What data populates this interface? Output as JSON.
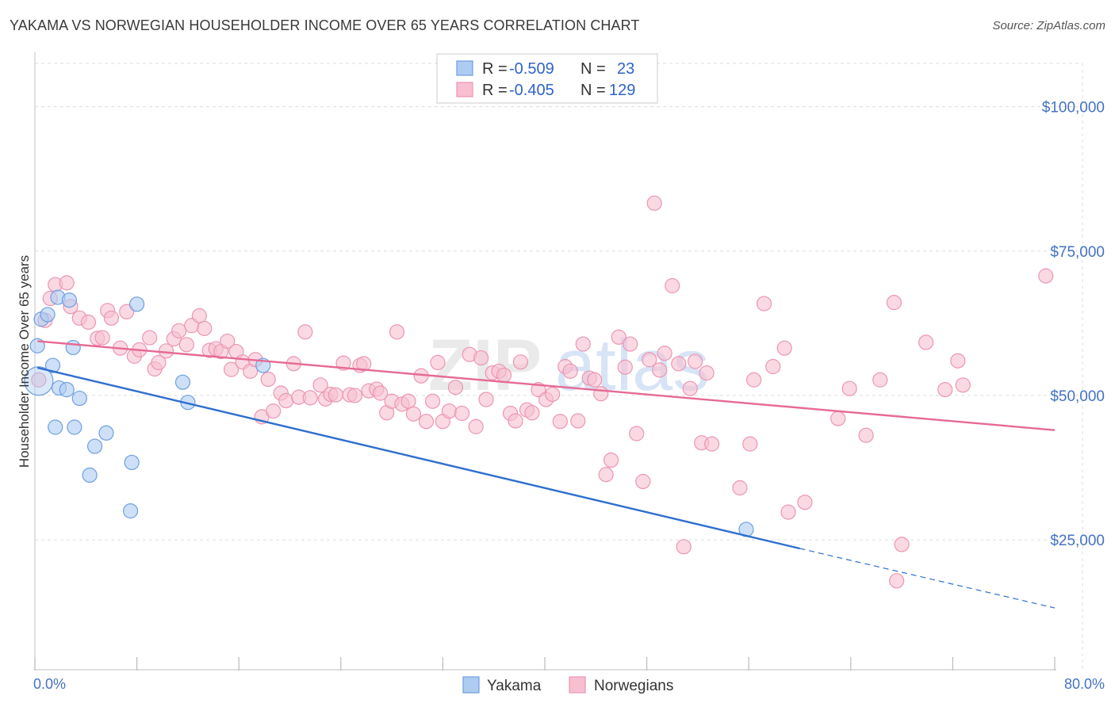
{
  "title": "YAKAMA VS NORWEGIAN HOUSEHOLDER INCOME OVER 65 YEARS CORRELATION CHART",
  "source": "Source: ZipAtlas.com",
  "watermark": {
    "part1": "ZIP",
    "part2": "atlas"
  },
  "colors": {
    "yakama_fill": "#aecbf2",
    "yakama_stroke": "#6f9fe0",
    "yakama_line": "#2f6fce",
    "norwegian_fill": "#f7bfd0",
    "norwegian_stroke": "#ec96b3",
    "norwegian_line": "#e66a94",
    "tick_text": "#4472c4",
    "grid": "#dddddd"
  },
  "legend": {
    "rows": [
      {
        "series": "yakama",
        "r_label": "R =",
        "r_value": "-0.509",
        "n_label": "N =",
        "n_value": "23"
      },
      {
        "series": "norwegians",
        "r_label": "R =",
        "r_value": "-0.405",
        "n_label": "N =",
        "n_value": "129"
      }
    ]
  },
  "chart_data": {
    "type": "scatter",
    "title": "YAKAMA VS NORWEGIAN HOUSEHOLDER INCOME OVER 65 YEARS CORRELATION CHART",
    "xlabel": "",
    "ylabel": "Householder Income Over 65 years",
    "xlim": [
      0,
      80
    ],
    "ylim": [
      2500,
      107500
    ],
    "x_tick_labels": [
      {
        "value": 0,
        "label": "0.0%"
      },
      {
        "value": 80,
        "label": "80.0%"
      }
    ],
    "y_ticks": [
      {
        "value": 25000,
        "label": "$25,000"
      },
      {
        "value": 50000,
        "label": "$50,000"
      },
      {
        "value": 75000,
        "label": "$75,000"
      },
      {
        "value": 100000,
        "label": "$100,000"
      }
    ],
    "grid": true,
    "legend_position": "top-center",
    "series": [
      {
        "name": "Yakama",
        "color": "#aecbf2",
        "r": -0.509,
        "n": 23,
        "trend": {
          "x0": 0.2,
          "y0": 54800,
          "x1": 60,
          "y1": 23500,
          "dash_to_x": 80,
          "dash_to_y": 13200
        },
        "points": [
          [
            0.2,
            58600
          ],
          [
            0.5,
            63200
          ],
          [
            1.0,
            64000
          ],
          [
            1.4,
            55200
          ],
          [
            1.6,
            44500
          ],
          [
            1.8,
            67000
          ],
          [
            1.9,
            51300
          ],
          [
            2.5,
            51000
          ],
          [
            2.7,
            66500
          ],
          [
            3.0,
            58300
          ],
          [
            3.1,
            44500
          ],
          [
            3.5,
            49500
          ],
          [
            4.3,
            36200
          ],
          [
            4.7,
            41200
          ],
          [
            5.6,
            43500
          ],
          [
            7.6,
            38400
          ],
          [
            7.5,
            30000
          ],
          [
            8.0,
            65800
          ],
          [
            11.6,
            52300
          ],
          [
            12.0,
            48800
          ],
          [
            17.9,
            55200
          ],
          [
            55.8,
            26800
          ],
          [
            0.3,
            52500
          ]
        ]
      },
      {
        "name": "Norwegians",
        "color": "#f7bfd0",
        "r": -0.405,
        "n": 129,
        "trend": {
          "x0": 0.2,
          "y0": 59400,
          "x1": 80,
          "y1": 44000
        },
        "points": [
          [
            0.3,
            52700
          ],
          [
            0.8,
            63000
          ],
          [
            1.2,
            66800
          ],
          [
            1.6,
            69200
          ],
          [
            2.5,
            69500
          ],
          [
            2.8,
            65400
          ],
          [
            3.5,
            63400
          ],
          [
            4.2,
            62700
          ],
          [
            4.9,
            59900
          ],
          [
            5.3,
            60000
          ],
          [
            5.7,
            64700
          ],
          [
            6.0,
            63400
          ],
          [
            6.7,
            58200
          ],
          [
            7.2,
            64500
          ],
          [
            7.8,
            56800
          ],
          [
            8.2,
            57900
          ],
          [
            9.0,
            60000
          ],
          [
            9.4,
            54600
          ],
          [
            9.7,
            55700
          ],
          [
            10.3,
            57700
          ],
          [
            10.9,
            59800
          ],
          [
            11.3,
            61200
          ],
          [
            11.9,
            58800
          ],
          [
            12.3,
            62100
          ],
          [
            12.9,
            63800
          ],
          [
            13.3,
            61600
          ],
          [
            13.7,
            57800
          ],
          [
            14.2,
            58100
          ],
          [
            14.6,
            57600
          ],
          [
            15.1,
            59400
          ],
          [
            15.4,
            54500
          ],
          [
            15.8,
            57600
          ],
          [
            16.3,
            55800
          ],
          [
            16.9,
            54200
          ],
          [
            17.3,
            56200
          ],
          [
            17.8,
            46300
          ],
          [
            18.3,
            52800
          ],
          [
            18.7,
            47300
          ],
          [
            19.3,
            50400
          ],
          [
            19.7,
            49100
          ],
          [
            20.3,
            55500
          ],
          [
            20.7,
            49700
          ],
          [
            21.2,
            61000
          ],
          [
            21.6,
            49600
          ],
          [
            22.4,
            51800
          ],
          [
            22.8,
            49400
          ],
          [
            23.2,
            50200
          ],
          [
            23.6,
            50100
          ],
          [
            24.2,
            55600
          ],
          [
            24.7,
            50100
          ],
          [
            25.1,
            50000
          ],
          [
            25.5,
            55200
          ],
          [
            25.8,
            55500
          ],
          [
            26.2,
            50800
          ],
          [
            26.8,
            51100
          ],
          [
            27.1,
            50400
          ],
          [
            27.6,
            47000
          ],
          [
            28.0,
            49000
          ],
          [
            28.4,
            61000
          ],
          [
            28.8,
            48500
          ],
          [
            29.3,
            49000
          ],
          [
            29.7,
            46800
          ],
          [
            30.3,
            53400
          ],
          [
            30.7,
            45500
          ],
          [
            31.2,
            49000
          ],
          [
            31.6,
            55700
          ],
          [
            32.0,
            45500
          ],
          [
            32.5,
            47300
          ],
          [
            33.0,
            51400
          ],
          [
            33.5,
            46900
          ],
          [
            34.1,
            57100
          ],
          [
            34.6,
            44600
          ],
          [
            35.0,
            56500
          ],
          [
            35.4,
            49300
          ],
          [
            35.9,
            53900
          ],
          [
            36.4,
            54200
          ],
          [
            36.8,
            53500
          ],
          [
            37.3,
            46900
          ],
          [
            37.7,
            45600
          ],
          [
            38.1,
            55800
          ],
          [
            38.6,
            47500
          ],
          [
            39.0,
            47000
          ],
          [
            39.5,
            51000
          ],
          [
            40.1,
            49300
          ],
          [
            40.6,
            50200
          ],
          [
            41.2,
            45500
          ],
          [
            41.6,
            55000
          ],
          [
            42.0,
            54200
          ],
          [
            42.6,
            45600
          ],
          [
            43.0,
            58900
          ],
          [
            43.5,
            53000
          ],
          [
            43.9,
            52700
          ],
          [
            44.4,
            50300
          ],
          [
            44.8,
            36300
          ],
          [
            45.2,
            38800
          ],
          [
            45.8,
            60100
          ],
          [
            46.3,
            54900
          ],
          [
            46.7,
            58900
          ],
          [
            47.2,
            43400
          ],
          [
            47.7,
            35100
          ],
          [
            48.2,
            56200
          ],
          [
            48.6,
            83300
          ],
          [
            49.0,
            54400
          ],
          [
            49.4,
            57300
          ],
          [
            50.0,
            69000
          ],
          [
            50.5,
            55500
          ],
          [
            50.9,
            23800
          ],
          [
            51.4,
            51200
          ],
          [
            51.8,
            55900
          ],
          [
            52.3,
            41800
          ],
          [
            52.7,
            53900
          ],
          [
            53.1,
            41600
          ],
          [
            55.3,
            34000
          ],
          [
            56.1,
            41600
          ],
          [
            56.4,
            52700
          ],
          [
            57.2,
            65900
          ],
          [
            57.9,
            55000
          ],
          [
            58.8,
            58200
          ],
          [
            59.1,
            29800
          ],
          [
            60.4,
            31500
          ],
          [
            63.0,
            46000
          ],
          [
            63.9,
            51200
          ],
          [
            65.2,
            43100
          ],
          [
            66.3,
            52700
          ],
          [
            67.6,
            17900
          ],
          [
            67.4,
            66100
          ],
          [
            68.0,
            24200
          ],
          [
            69.9,
            59200
          ],
          [
            71.4,
            51000
          ],
          [
            72.4,
            56000
          ],
          [
            72.8,
            51800
          ],
          [
            79.3,
            70700
          ]
        ]
      }
    ]
  }
}
